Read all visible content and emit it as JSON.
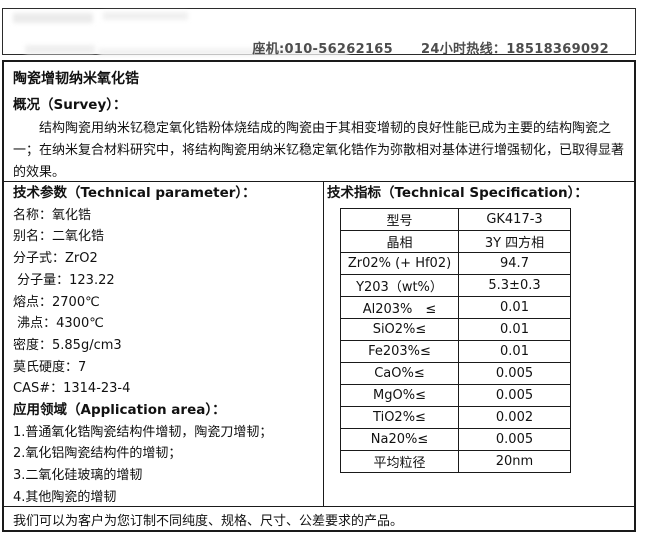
{
  "header": {
    "landline": "座机:010-56262165",
    "hotline": "24小时热线：18518369092"
  },
  "title": "陶瓷增韧纳米氧化锆",
  "survey": {
    "heading": "概况（Survey）：",
    "body": "结构陶瓷用纳米钇稳定氧化锆粉体烧结成的陶瓷由于其相变增韧的良好性能已成为主要的结构陶瓷之一；在纳米复合材料研究中，将结构陶瓷用纳米钇稳定氧化锆作为弥散相对基体进行增强韧化，已取得显著的效果。"
  },
  "params": {
    "heading": "技术参数（Technical parameter）：",
    "items": [
      "名称：氧化锆",
      "别名：二氧化锆",
      "分子式：ZrO2",
      " 分子量：123.22",
      "熔点：2700℃",
      " 沸点：4300℃",
      "密度：5.85g/cm3",
      "莫氏硬度：7",
      "CAS#：1314-23-4"
    ]
  },
  "applications": {
    "heading": "应用领域（Application area）：",
    "items": [
      "1.普通氧化锆陶瓷结构件增韧，陶瓷刀增韧；",
      "2.氧化铝陶瓷结构件的增韧；",
      "3.二氧化硅玻璃的增韧",
      "4.其他陶瓷的增韧"
    ]
  },
  "specs": {
    "heading": "技术指标（Technical Specification）：",
    "rows": [
      {
        "label": "型号",
        "value": "GK417-3"
      },
      {
        "label": "晶相",
        "value": "3Y 四方相"
      },
      {
        "label": "Zr02% (+ Hf02)",
        "value": "94.7"
      },
      {
        "label": "Y203（wt%）",
        "value": "5.3±0.3"
      },
      {
        "label": "Al203%　≤",
        "value": "0.01"
      },
      {
        "label": "SiO2%≤",
        "value": "0.01"
      },
      {
        "label": "Fe203%≤",
        "value": "0.01"
      },
      {
        "label": "CaO%≤",
        "value": "0.005"
      },
      {
        "label": "MgO%≤",
        "value": "0.005"
      },
      {
        "label": "TiO2%≤",
        "value": "0.002"
      },
      {
        "label": "Na20%≤",
        "value": "0.005"
      },
      {
        "label": "平均粒径",
        "value": "20nm"
      }
    ]
  },
  "footer": {
    "note": "我们可以为客户为您订制不同纯度、规格、尺寸、公差要求的产品。"
  }
}
